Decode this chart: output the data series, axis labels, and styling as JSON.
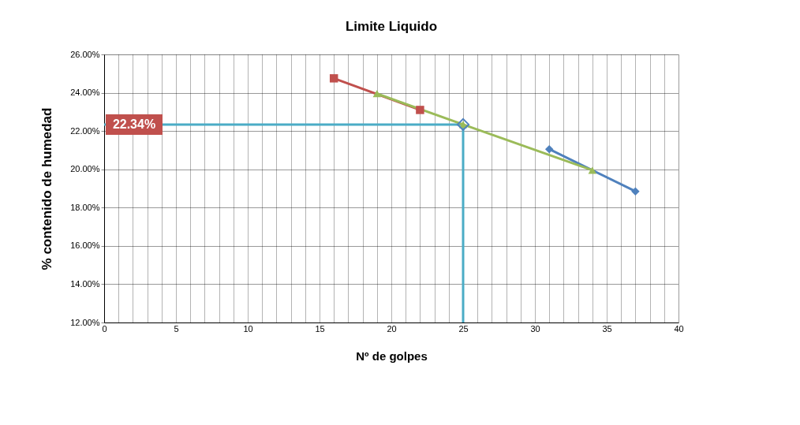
{
  "chart_data": {
    "type": "line",
    "title": "Limite Liquido",
    "xlabel": "Nº de golpes",
    "ylabel": "% contenido  de humedad",
    "series": [
      {
        "color": "#c0504d",
        "marker": "square",
        "x": [
          16,
          22
        ],
        "values": [
          24.75,
          23.1
        ]
      },
      {
        "color": "#4f81bd",
        "marker": "diamond",
        "x": [
          31,
          37
        ],
        "values": [
          21.05,
          18.85
        ]
      },
      {
        "color": "#9bbb59",
        "marker": "triangle",
        "x": [
          19,
          25,
          34
        ],
        "values": [
          23.95,
          22.34,
          19.95
        ]
      },
      {
        "type": "scatter",
        "color": "#4f81bd",
        "marker": "diamond",
        "x": [
          25
        ],
        "values": [
          22.34
        ]
      }
    ],
    "ref_lines": [
      {
        "axis": "y",
        "value": 22.34,
        "label": "22.34%",
        "color": "#4bacc6"
      },
      {
        "axis": "x",
        "value": 25,
        "color": "#4bacc6"
      }
    ],
    "xlim": [
      0,
      40
    ],
    "xticks": [
      0,
      {
        "value": 1,
        "label": null
      },
      {
        "value": 2,
        "label": null
      },
      {
        "value": 3,
        "label": null
      },
      {
        "value": 4,
        "label": null
      },
      5,
      {
        "value": 6,
        "label": null
      },
      {
        "value": 7,
        "label": null
      },
      {
        "value": 8,
        "label": null
      },
      {
        "value": 9,
        "label": null
      },
      10,
      {
        "value": 11,
        "label": null
      },
      {
        "value": 12,
        "label": null
      },
      {
        "value": 13,
        "label": null
      },
      {
        "value": 14,
        "label": null
      },
      15,
      {
        "value": 16,
        "label": null
      },
      {
        "value": 17,
        "label": null
      },
      {
        "value": 18,
        "label": null
      },
      {
        "value": 19,
        "label": null
      },
      20,
      {
        "value": 21,
        "label": null
      },
      {
        "value": 22,
        "label": null
      },
      {
        "value": 23,
        "label": null
      },
      {
        "value": 24,
        "label": null
      },
      25,
      {
        "value": 26,
        "label": null
      },
      {
        "value": 27,
        "label": null
      },
      {
        "value": 28,
        "label": null
      },
      {
        "value": 29,
        "label": null
      },
      30,
      {
        "value": 31,
        "label": null
      },
      {
        "value": 32,
        "label": null
      },
      {
        "value": 33,
        "label": null
      },
      {
        "value": 34,
        "label": null
      },
      35,
      {
        "value": 36,
        "label": null
      },
      {
        "value": 37,
        "label": null
      },
      {
        "value": 38,
        "label": null
      },
      {
        "value": 39,
        "label": null
      },
      40
    ],
    "ylim": [
      12,
      26
    ],
    "yticks": [
      {
        "value": 12,
        "label": "12.00%"
      },
      {
        "value": 14,
        "label": "14.00%"
      },
      {
        "value": 16,
        "label": "16.00%"
      },
      {
        "value": 18,
        "label": "18.00%"
      },
      {
        "value": 20,
        "label": "20.00%"
      },
      {
        "value": 22,
        "label": "22.00%"
      },
      {
        "value": 24,
        "label": "24.00%"
      },
      {
        "value": 26,
        "label": "26.00%"
      }
    ],
    "grid": true,
    "line_style": "solid"
  }
}
